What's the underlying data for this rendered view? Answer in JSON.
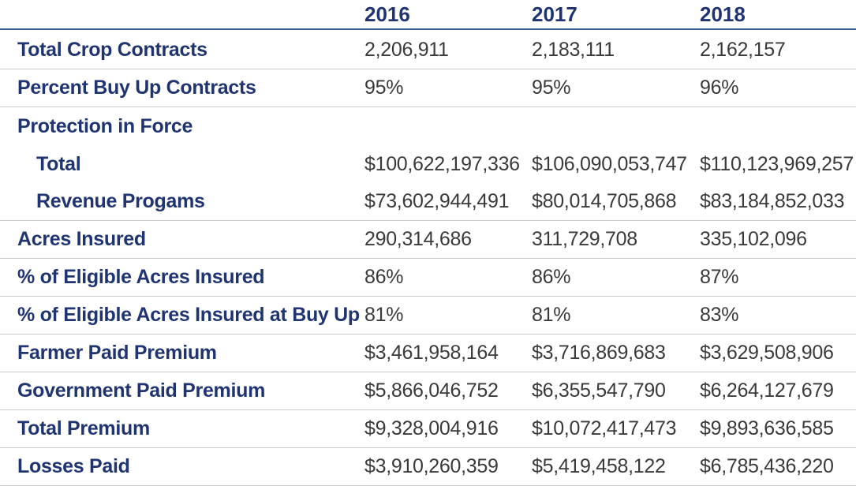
{
  "chart_data": {
    "type": "table",
    "columns": [
      "2016",
      "2017",
      "2018"
    ],
    "rows": [
      {
        "label": "Total Crop Contracts",
        "indent": false,
        "values": [
          "2,206,911",
          "2,183,111",
          "2,162,157"
        ]
      },
      {
        "label": "Percent Buy Up Contracts",
        "indent": false,
        "values": [
          "95%",
          "95%",
          "96%"
        ]
      },
      {
        "label": "Protection in Force",
        "indent": false,
        "values": [
          "",
          "",
          ""
        ]
      },
      {
        "label": "Total",
        "indent": true,
        "values": [
          "$100,622,197,336",
          "$106,090,053,747",
          "$110,123,969,257"
        ]
      },
      {
        "label": "Revenue Progams",
        "indent": true,
        "values": [
          "$73,602,944,491",
          "$80,014,705,868",
          "$83,184,852,033"
        ]
      },
      {
        "label": "Acres Insured",
        "indent": false,
        "values": [
          "290,314,686",
          "311,729,708",
          "335,102,096"
        ]
      },
      {
        "label": "% of Eligible Acres Insured",
        "indent": false,
        "values": [
          "86%",
          "86%",
          "87%"
        ]
      },
      {
        "label": "% of Eligible Acres Insured at Buy Up",
        "indent": false,
        "values": [
          "81%",
          "81%",
          "83%"
        ]
      },
      {
        "label": "Farmer Paid Premium",
        "indent": false,
        "values": [
          "$3,461,958,164",
          "$3,716,869,683",
          "$3,629,508,906"
        ]
      },
      {
        "label": "Government Paid Premium",
        "indent": false,
        "values": [
          "$5,866,046,752",
          "$6,355,547,790",
          "$6,264,127,679"
        ]
      },
      {
        "label": "Total Premium",
        "indent": false,
        "values": [
          "$9,328,004,916",
          "$10,072,417,473",
          "$9,893,636,585"
        ]
      },
      {
        "label": "Losses Paid",
        "indent": false,
        "values": [
          "$3,910,260,359",
          "$5,419,458,122",
          "$6,785,436,220"
        ]
      }
    ]
  },
  "colors": {
    "header_text": "#1f3470",
    "label_text": "#1f3470",
    "value_text": "#3a3a3a",
    "header_rule": "#3d5a9a",
    "row_rule": "#c9c9c9"
  }
}
